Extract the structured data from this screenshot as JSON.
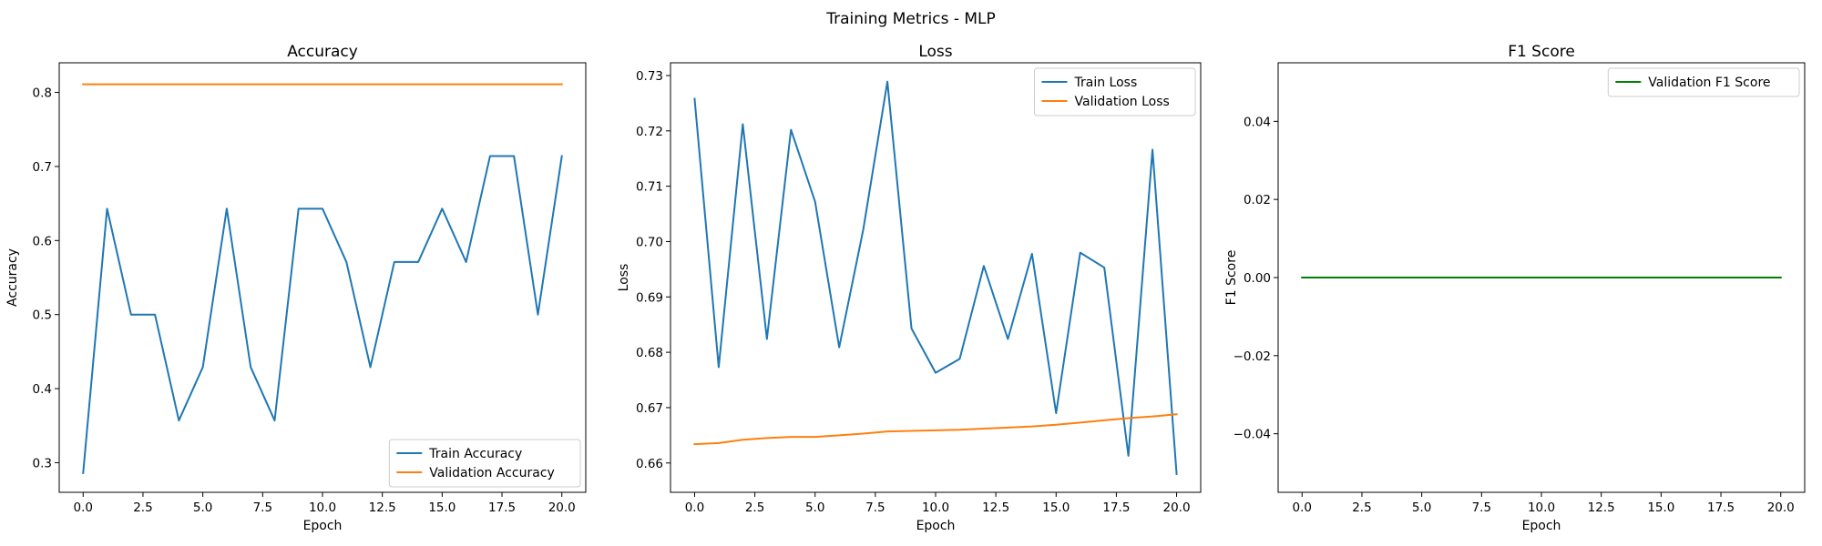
{
  "figure": {
    "title": "Training Metrics - MLP"
  },
  "colors": {
    "blue": "#1f77b4",
    "orange": "#ff7f0e",
    "green": "#008000"
  },
  "chart_data": [
    {
      "type": "line",
      "title": "Accuracy",
      "xlabel": "Epoch",
      "ylabel": "Accuracy",
      "xlim": [
        -1,
        21
      ],
      "ylim": [
        0.26,
        0.84
      ],
      "xticks": [
        0.0,
        2.5,
        5.0,
        7.5,
        10.0,
        12.5,
        15.0,
        17.5,
        20.0
      ],
      "xtick_labels": [
        "0.0",
        "2.5",
        "5.0",
        "7.5",
        "10.0",
        "12.5",
        "15.0",
        "17.5",
        "20.0"
      ],
      "yticks": [
        0.3,
        0.4,
        0.5,
        0.6,
        0.7,
        0.8
      ],
      "ytick_labels": [
        "0.3",
        "0.4",
        "0.5",
        "0.6",
        "0.7",
        "0.8"
      ],
      "legend_loc": "lower-right",
      "series": [
        {
          "name": "Train Accuracy",
          "color": "#1f77b4",
          "x": [
            0,
            1,
            2,
            3,
            4,
            5,
            6,
            7,
            8,
            9,
            10,
            11,
            12,
            13,
            14,
            15,
            16,
            17,
            18,
            19,
            20
          ],
          "y": [
            0.286,
            0.643,
            0.5,
            0.5,
            0.357,
            0.429,
            0.643,
            0.429,
            0.357,
            0.643,
            0.643,
            0.571,
            0.429,
            0.571,
            0.571,
            0.643,
            0.571,
            0.714,
            0.714,
            0.5,
            0.714
          ]
        },
        {
          "name": "Validation Accuracy",
          "color": "#ff7f0e",
          "x": [
            0,
            1,
            2,
            3,
            4,
            5,
            6,
            7,
            8,
            9,
            10,
            11,
            12,
            13,
            14,
            15,
            16,
            17,
            18,
            19,
            20
          ],
          "y": [
            0.811,
            0.811,
            0.811,
            0.811,
            0.811,
            0.811,
            0.811,
            0.811,
            0.811,
            0.811,
            0.811,
            0.811,
            0.811,
            0.811,
            0.811,
            0.811,
            0.811,
            0.811,
            0.811,
            0.811,
            0.811
          ]
        }
      ]
    },
    {
      "type": "line",
      "title": "Loss",
      "xlabel": "Epoch",
      "ylabel": "Loss",
      "xlim": [
        -1,
        21
      ],
      "ylim": [
        0.6547,
        0.7323
      ],
      "xticks": [
        0.0,
        2.5,
        5.0,
        7.5,
        10.0,
        12.5,
        15.0,
        17.5,
        20.0
      ],
      "xtick_labels": [
        "0.0",
        "2.5",
        "5.0",
        "7.5",
        "10.0",
        "12.5",
        "15.0",
        "17.5",
        "20.0"
      ],
      "yticks": [
        0.66,
        0.67,
        0.68,
        0.69,
        0.7,
        0.71,
        0.72,
        0.73
      ],
      "ytick_labels": [
        "0.66",
        "0.67",
        "0.68",
        "0.69",
        "0.70",
        "0.71",
        "0.72",
        "0.73"
      ],
      "legend_loc": "upper-right",
      "series": [
        {
          "name": "Train Loss",
          "color": "#1f77b4",
          "x": [
            0,
            1,
            2,
            3,
            4,
            5,
            6,
            7,
            8,
            9,
            10,
            11,
            12,
            13,
            14,
            15,
            16,
            17,
            18,
            19,
            20
          ],
          "y": [
            0.7258,
            0.6773,
            0.7212,
            0.6824,
            0.7202,
            0.7072,
            0.6809,
            0.7022,
            0.7289,
            0.6843,
            0.6763,
            0.6788,
            0.6956,
            0.6824,
            0.6978,
            0.669,
            0.698,
            0.6953,
            0.6613,
            0.7166,
            0.658
          ]
        },
        {
          "name": "Validation Loss",
          "color": "#ff7f0e",
          "x": [
            0,
            1,
            2,
            3,
            4,
            5,
            6,
            7,
            8,
            9,
            10,
            11,
            12,
            13,
            14,
            15,
            16,
            17,
            18,
            19,
            20
          ],
          "y": [
            0.6634,
            0.6636,
            0.6642,
            0.6645,
            0.6647,
            0.6647,
            0.665,
            0.6653,
            0.6657,
            0.6658,
            0.6659,
            0.666,
            0.6662,
            0.6664,
            0.6666,
            0.6669,
            0.6673,
            0.6677,
            0.6681,
            0.6684,
            0.6688
          ]
        }
      ]
    },
    {
      "type": "line",
      "title": "F1 Score",
      "xlabel": "Epoch",
      "ylabel": "F1 Score",
      "xlim": [
        -1,
        21
      ],
      "ylim": [
        -0.055,
        0.055
      ],
      "xticks": [
        0.0,
        2.5,
        5.0,
        7.5,
        10.0,
        12.5,
        15.0,
        17.5,
        20.0
      ],
      "xtick_labels": [
        "0.0",
        "2.5",
        "5.0",
        "7.5",
        "10.0",
        "12.5",
        "15.0",
        "17.5",
        "20.0"
      ],
      "yticks": [
        -0.04,
        -0.02,
        0.0,
        0.02,
        0.04
      ],
      "ytick_labels": [
        "−0.04",
        "−0.02",
        "0.00",
        "0.02",
        "0.04"
      ],
      "legend_loc": "upper-right",
      "series": [
        {
          "name": "Validation F1 Score",
          "color": "#008000",
          "x": [
            0,
            1,
            2,
            3,
            4,
            5,
            6,
            7,
            8,
            9,
            10,
            11,
            12,
            13,
            14,
            15,
            16,
            17,
            18,
            19,
            20
          ],
          "y": [
            0,
            0,
            0,
            0,
            0,
            0,
            0,
            0,
            0,
            0,
            0,
            0,
            0,
            0,
            0,
            0,
            0,
            0,
            0,
            0,
            0
          ]
        }
      ]
    }
  ]
}
